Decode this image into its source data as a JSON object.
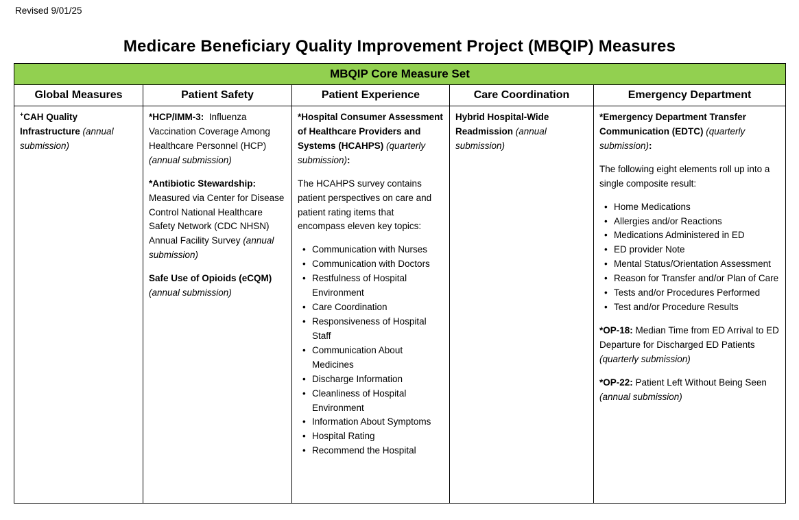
{
  "page": {
    "revised_label": "Revised 9/01/25",
    "title": "Medicare Beneficiary Quality Improvement Project (MBQIP) Measures"
  },
  "colors": {
    "banner_green": "#92D050",
    "border": "#000000",
    "text": "#000000",
    "background": "#FFFFFF"
  },
  "table": {
    "banner": "MBQIP Core Measure Set",
    "columns": [
      {
        "id": "global-measures",
        "header": "Global Measures",
        "blocks": [
          {
            "type": "p",
            "runs": [
              {
                "t": "+",
                "s": "bold-sup"
              },
              {
                "t": "CAH Quality Infrastructure ",
                "s": "bold"
              },
              {
                "t": "(annual submission)",
                "s": "italic"
              }
            ]
          }
        ]
      },
      {
        "id": "patient-safety",
        "header": "Patient Safety",
        "blocks": [
          {
            "type": "p",
            "runs": [
              {
                "t": "*HCP/IMM-3:",
                "s": "bold"
              },
              {
                "t": "  Influenza Vaccination Coverage Among Healthcare Personnel (HCP) ",
                "s": "normal"
              },
              {
                "t": "(annual submission)",
                "s": "italic"
              }
            ]
          },
          {
            "type": "p",
            "runs": [
              {
                "t": "*Antibiotic Stewardship:",
                "s": "bold"
              },
              {
                "t": " Measured via Center for Disease Control National Healthcare Safety Network (CDC NHSN) Annual Facility Survey ",
                "s": "normal"
              },
              {
                "t": "(annual submission)",
                "s": "italic"
              }
            ]
          },
          {
            "type": "p",
            "runs": [
              {
                "t": "Safe Use of Opioids (eCQM) ",
                "s": "bold"
              },
              {
                "t": "(annual submission)",
                "s": "italic"
              }
            ]
          }
        ]
      },
      {
        "id": "patient-experience",
        "header": "Patient Experience",
        "blocks": [
          {
            "type": "p",
            "runs": [
              {
                "t": "*Hospital Consumer Assessment of Healthcare Providers and Systems (HCAHPS) ",
                "s": "bold"
              },
              {
                "t": "(quarterly submission)",
                "s": "italic"
              },
              {
                "t": ":",
                "s": "bold"
              }
            ]
          },
          {
            "type": "p",
            "runs": [
              {
                "t": "The HCAHPS survey contains patient perspectives on care and patient rating items that encompass eleven key topics:",
                "s": "normal"
              }
            ]
          },
          {
            "type": "ul",
            "items": [
              "Communication with Nurses",
              "Communication with Doctors",
              "Restfulness of Hospital Environment",
              "Care Coordination",
              "Responsiveness of Hospital Staff",
              "Communication About Medicines",
              "Discharge Information",
              "Cleanliness of Hospital Environment",
              "Information About Symptoms",
              "Hospital Rating",
              "Recommend the Hospital"
            ]
          }
        ]
      },
      {
        "id": "care-coordination",
        "header": "Care Coordination",
        "blocks": [
          {
            "type": "p",
            "runs": [
              {
                "t": "Hybrid Hospital-Wide Readmission ",
                "s": "bold"
              },
              {
                "t": "(annual submission)",
                "s": "italic"
              }
            ]
          }
        ]
      },
      {
        "id": "emergency-department",
        "header": "Emergency Department",
        "blocks": [
          {
            "type": "p",
            "runs": [
              {
                "t": "*Emergency Department Transfer Communication (EDTC) ",
                "s": "bold"
              },
              {
                "t": "(quarterly submission)",
                "s": "italic"
              },
              {
                "t": ":",
                "s": "bold"
              }
            ]
          },
          {
            "type": "p",
            "runs": [
              {
                "t": "The following eight elements roll up into a single composite result:",
                "s": "normal"
              }
            ]
          },
          {
            "type": "ul",
            "items": [
              "Home Medications",
              "Allergies and/or Reactions",
              "Medications Administered in ED",
              "ED provider Note",
              "Mental Status/Orientation Assessment",
              "Reason for Transfer and/or Plan of Care",
              "Tests and/or Procedures Performed",
              "Test and/or Procedure Results"
            ]
          },
          {
            "type": "p",
            "runs": [
              {
                "t": "*OP-18:",
                "s": "bold"
              },
              {
                "t": " Median Time from ED Arrival to ED Departure for Discharged ED Patients ",
                "s": "normal"
              },
              {
                "t": "(quarterly submission)",
                "s": "italic"
              }
            ]
          },
          {
            "type": "p",
            "runs": [
              {
                "t": "*OP-22:",
                "s": "bold"
              },
              {
                "t": " Patient Left Without Being Seen ",
                "s": "normal"
              },
              {
                "t": "(annual submission)",
                "s": "italic"
              }
            ]
          }
        ]
      }
    ]
  }
}
